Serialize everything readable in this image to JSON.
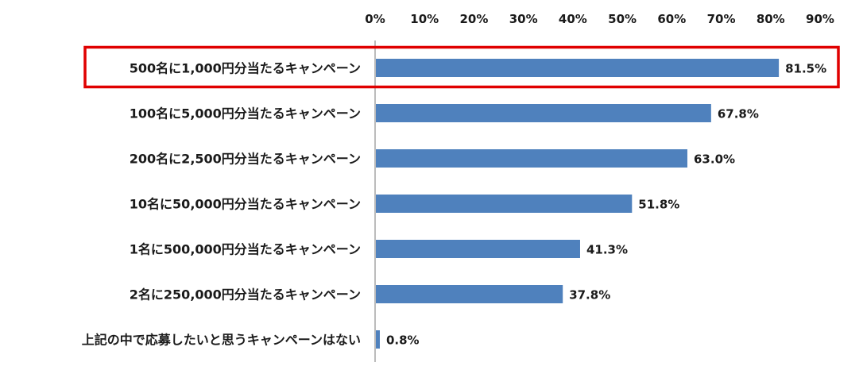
{
  "chart_data": {
    "type": "bar",
    "orientation": "horizontal",
    "categories": [
      "500名に1,000円分当たるキャンペーン",
      "100名に5,000円分当たるキャンペーン",
      "200名に2,500円分当たるキャンペーン",
      "10名に50,000円分当たるキャンペーン",
      "1名に500,000円分当たるキャンペーン",
      "2名に250,000円分当たるキャンペーン",
      "上記の中で応募したいと思うキャンペーンはない"
    ],
    "values": [
      81.5,
      67.8,
      63.0,
      51.8,
      41.3,
      37.8,
      0.8
    ],
    "value_labels": [
      "81.5%",
      "67.8%",
      "63.0%",
      "51.8%",
      "41.3%",
      "37.8%",
      "0.8%"
    ],
    "x_ticks": [
      "0%",
      "10%",
      "20%",
      "30%",
      "40%",
      "50%",
      "60%",
      "70%",
      "80%",
      "90%"
    ],
    "xlim": [
      0,
      90
    ],
    "x_axis_position": "top",
    "grid": false,
    "bar_color": "#4f81bd",
    "highlight_color": "#e00000",
    "highlighted_category": "500名に1,000円分当たるキャンペーン"
  }
}
